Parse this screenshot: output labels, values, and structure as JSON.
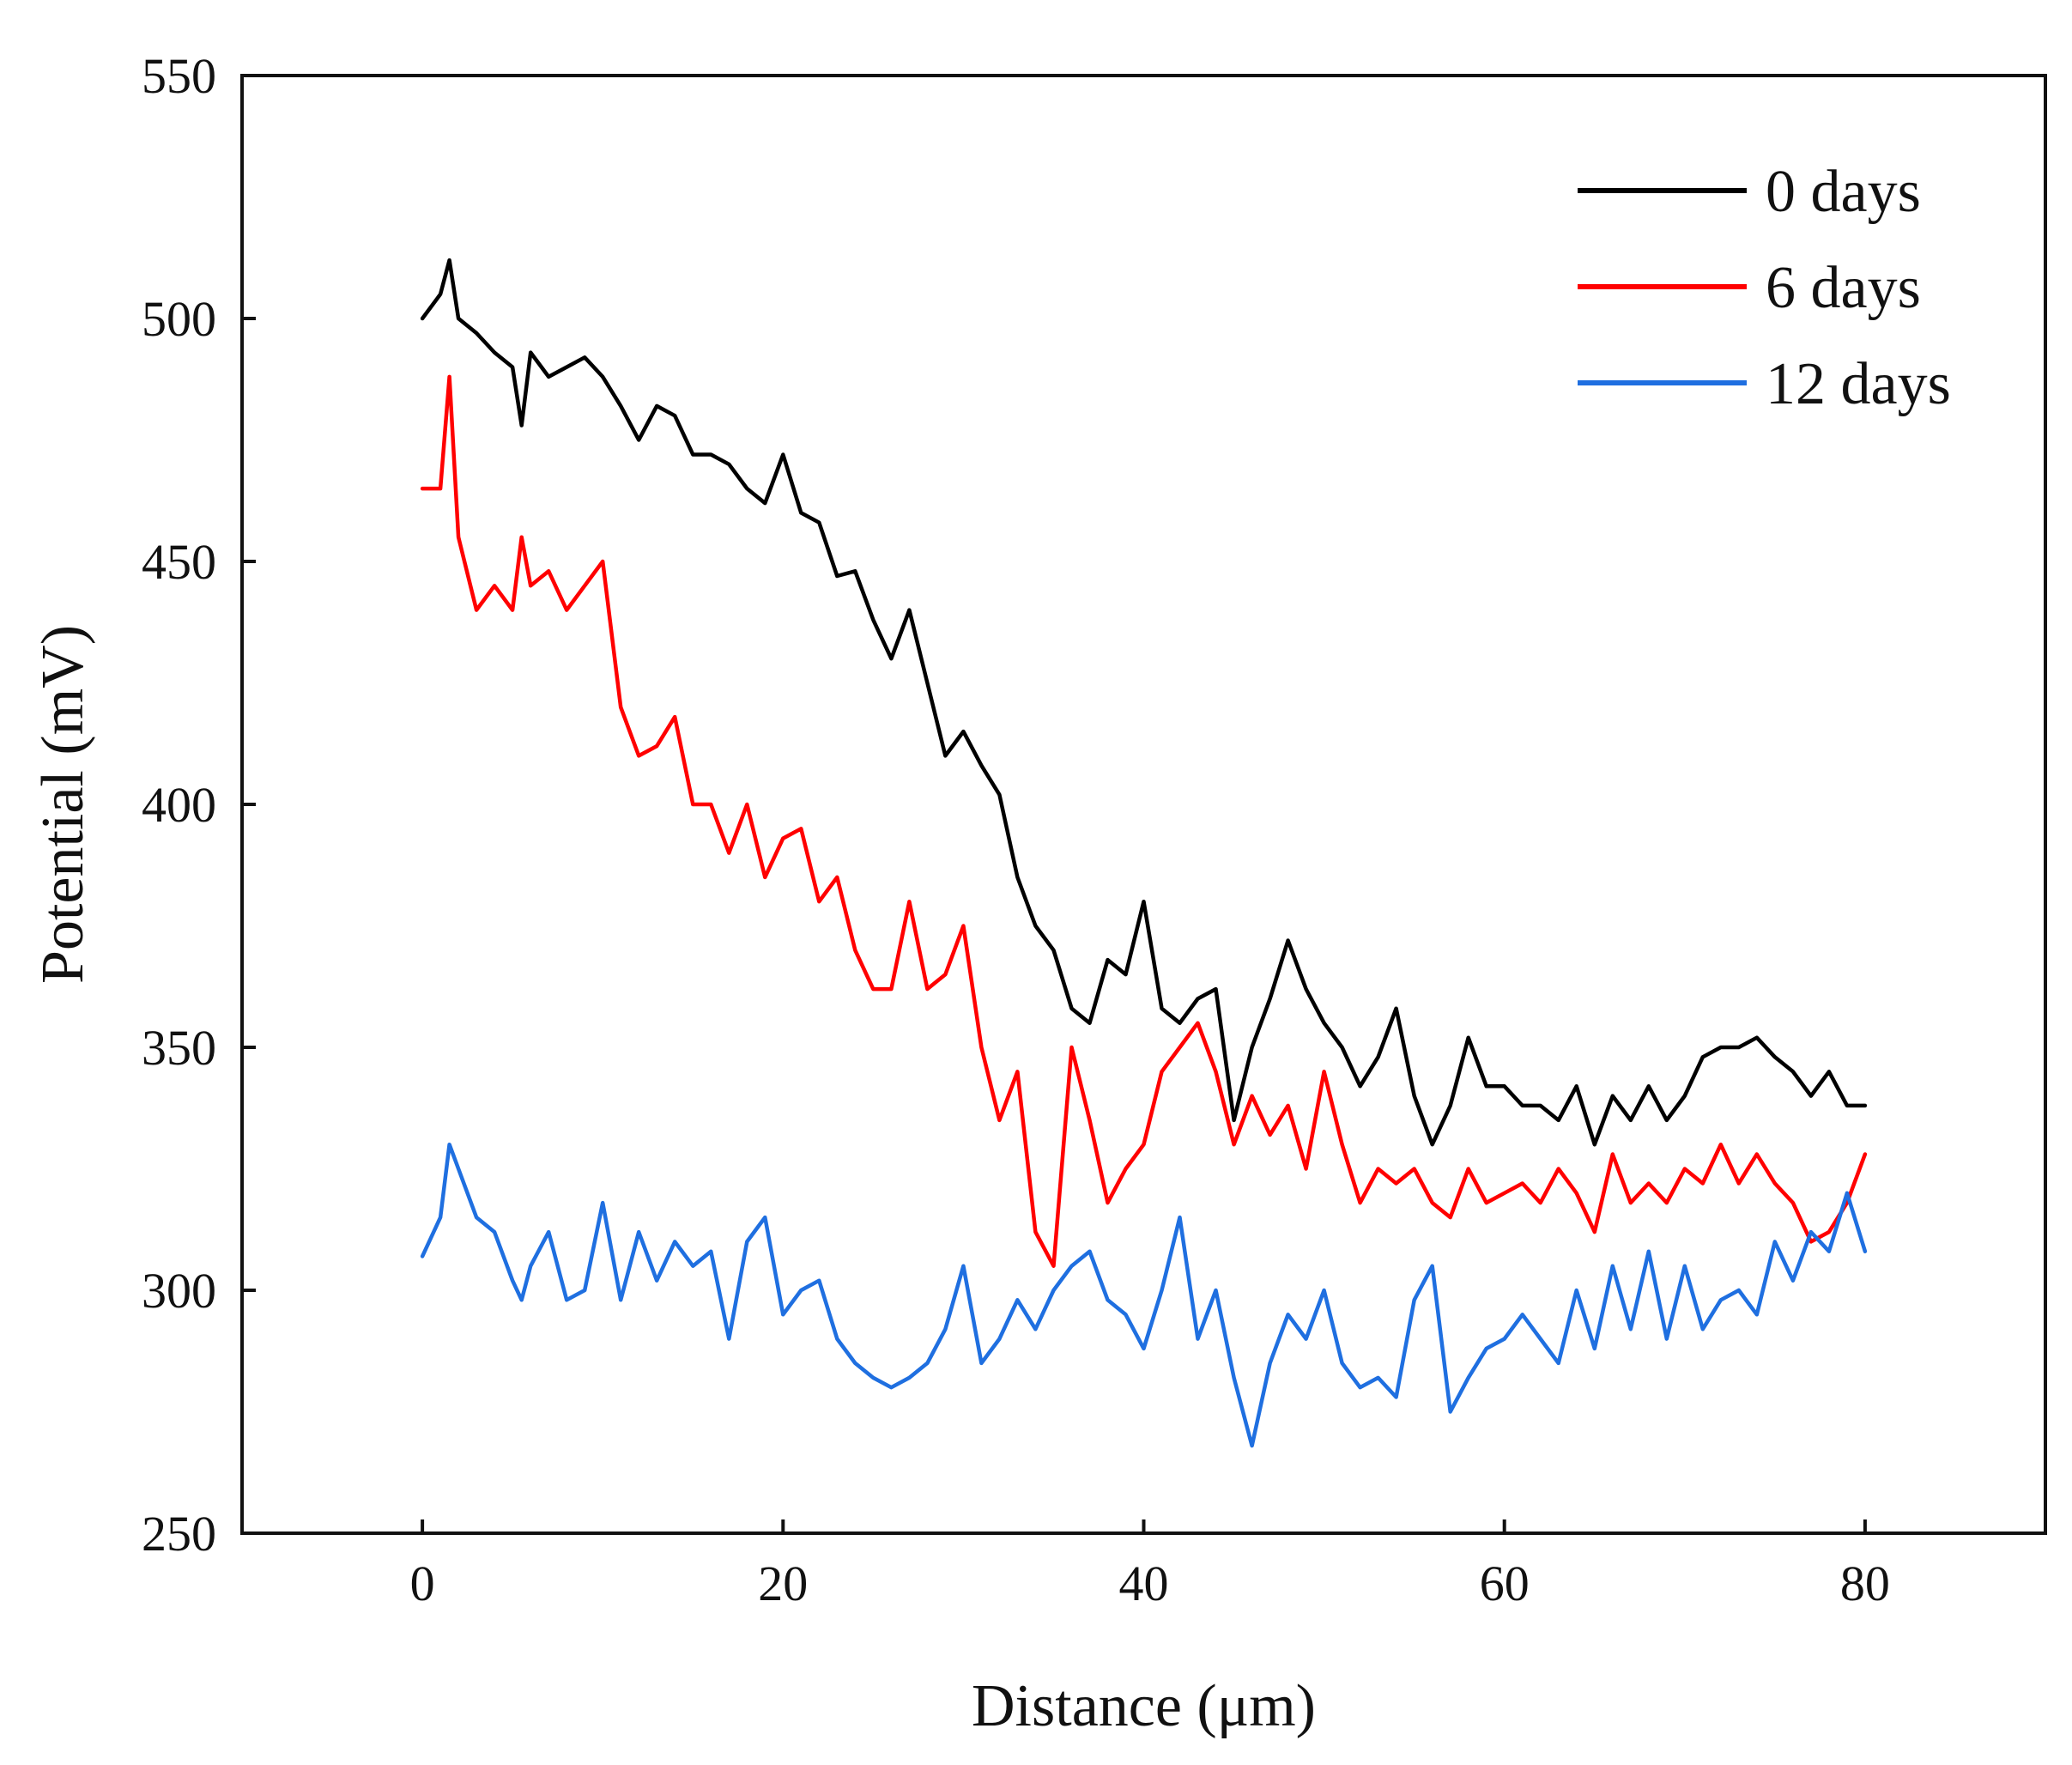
{
  "chart_data": {
    "type": "line",
    "xlabel": "Distance (μm)",
    "ylabel": "Potential (mV)",
    "xlim": [
      -10,
      90
    ],
    "ylim": [
      250,
      550
    ],
    "xticks": [
      0,
      20,
      40,
      60,
      80
    ],
    "yticks": [
      250,
      300,
      350,
      400,
      450,
      500,
      550
    ],
    "grid": false,
    "legend_position": "top-right",
    "series": [
      {
        "name": "0 days",
        "color": "#000000",
        "x": [
          0,
          1,
          1.5,
          2,
          3,
          4,
          5,
          5.5,
          6,
          7,
          8,
          9,
          10,
          11,
          12,
          13,
          14,
          15,
          16,
          17,
          18,
          19,
          20,
          21,
          22,
          23,
          24,
          25,
          26,
          27,
          28,
          29,
          30,
          31,
          32,
          33,
          34,
          35,
          36,
          37,
          38,
          39,
          40,
          41,
          42,
          43,
          44,
          45,
          46,
          47,
          48,
          49,
          50,
          51,
          52,
          53,
          54,
          55,
          56,
          57,
          58,
          59,
          60,
          61,
          62,
          63,
          64,
          65,
          66,
          67,
          68,
          69,
          70,
          71,
          72,
          73,
          74,
          75,
          76,
          77,
          78,
          79,
          80
        ],
        "y": [
          500,
          505,
          512,
          500,
          497,
          493,
          490,
          478,
          493,
          488,
          490,
          492,
          488,
          482,
          475,
          482,
          480,
          472,
          472,
          470,
          465,
          462,
          472,
          460,
          458,
          447,
          448,
          438,
          430,
          440,
          425,
          410,
          415,
          408,
          402,
          385,
          375,
          370,
          358,
          355,
          368,
          365,
          380,
          358,
          355,
          360,
          362,
          335,
          350,
          360,
          372,
          362,
          355,
          350,
          342,
          348,
          358,
          340,
          330,
          338,
          352,
          342,
          342,
          338,
          338,
          335,
          342,
          330,
          340,
          335,
          342,
          335,
          340,
          348,
          350,
          350,
          352,
          348,
          345,
          340,
          345,
          338,
          338
        ]
      },
      {
        "name": "6 days",
        "color": "#ff0000",
        "x": [
          0,
          1,
          1.5,
          2,
          3,
          4,
          5,
          5.5,
          6,
          7,
          8,
          9,
          10,
          11,
          12,
          13,
          14,
          15,
          16,
          17,
          18,
          19,
          20,
          21,
          22,
          23,
          24,
          25,
          26,
          27,
          28,
          29,
          30,
          31,
          32,
          33,
          34,
          35,
          36,
          37,
          38,
          39,
          40,
          41,
          42,
          43,
          44,
          45,
          46,
          47,
          48,
          49,
          50,
          51,
          52,
          53,
          54,
          55,
          56,
          57,
          58,
          59,
          60,
          61,
          62,
          63,
          64,
          65,
          66,
          67,
          68,
          69,
          70,
          71,
          72,
          73,
          74,
          75,
          76,
          77,
          78,
          79,
          80
        ],
        "y": [
          465,
          465,
          488,
          455,
          440,
          445,
          440,
          455,
          445,
          448,
          440,
          445,
          450,
          420,
          410,
          412,
          418,
          400,
          400,
          390,
          400,
          385,
          393,
          395,
          380,
          385,
          370,
          362,
          362,
          380,
          362,
          365,
          375,
          350,
          335,
          345,
          312,
          305,
          350,
          335,
          318,
          325,
          330,
          345,
          350,
          355,
          345,
          330,
          340,
          332,
          338,
          325,
          345,
          330,
          318,
          325,
          322,
          325,
          318,
          315,
          325,
          318,
          320,
          322,
          318,
          325,
          320,
          312,
          328,
          318,
          322,
          318,
          325,
          322,
          330,
          322,
          328,
          322,
          318,
          310,
          312,
          318,
          328
        ]
      },
      {
        "name": "12 days",
        "color": "#1f6fe0",
        "x": [
          0,
          1,
          1.5,
          2,
          3,
          4,
          5,
          5.5,
          6,
          7,
          8,
          9,
          10,
          11,
          12,
          13,
          14,
          15,
          16,
          17,
          18,
          19,
          20,
          21,
          22,
          23,
          24,
          25,
          26,
          27,
          28,
          29,
          30,
          31,
          32,
          33,
          34,
          35,
          36,
          37,
          38,
          39,
          40,
          41,
          42,
          43,
          44,
          45,
          46,
          47,
          48,
          49,
          50,
          51,
          52,
          53,
          54,
          55,
          56,
          57,
          58,
          59,
          60,
          61,
          62,
          63,
          64,
          65,
          66,
          67,
          68,
          69,
          70,
          71,
          72,
          73,
          74,
          75,
          76,
          77,
          78,
          79,
          80
        ],
        "y": [
          307,
          315,
          330,
          325,
          315,
          312,
          302,
          298,
          305,
          312,
          298,
          300,
          318,
          298,
          312,
          302,
          310,
          305,
          308,
          290,
          310,
          315,
          295,
          300,
          302,
          290,
          285,
          282,
          280,
          282,
          285,
          292,
          305,
          285,
          290,
          298,
          292,
          300,
          305,
          308,
          298,
          295,
          288,
          300,
          315,
          290,
          300,
          282,
          268,
          285,
          295,
          290,
          300,
          285,
          280,
          282,
          278,
          298,
          305,
          275,
          282,
          288,
          290,
          295,
          290,
          285,
          300,
          288,
          305,
          292,
          308,
          290,
          305,
          292,
          298,
          300,
          295,
          310,
          302,
          312,
          308,
          320,
          308
        ]
      }
    ]
  }
}
